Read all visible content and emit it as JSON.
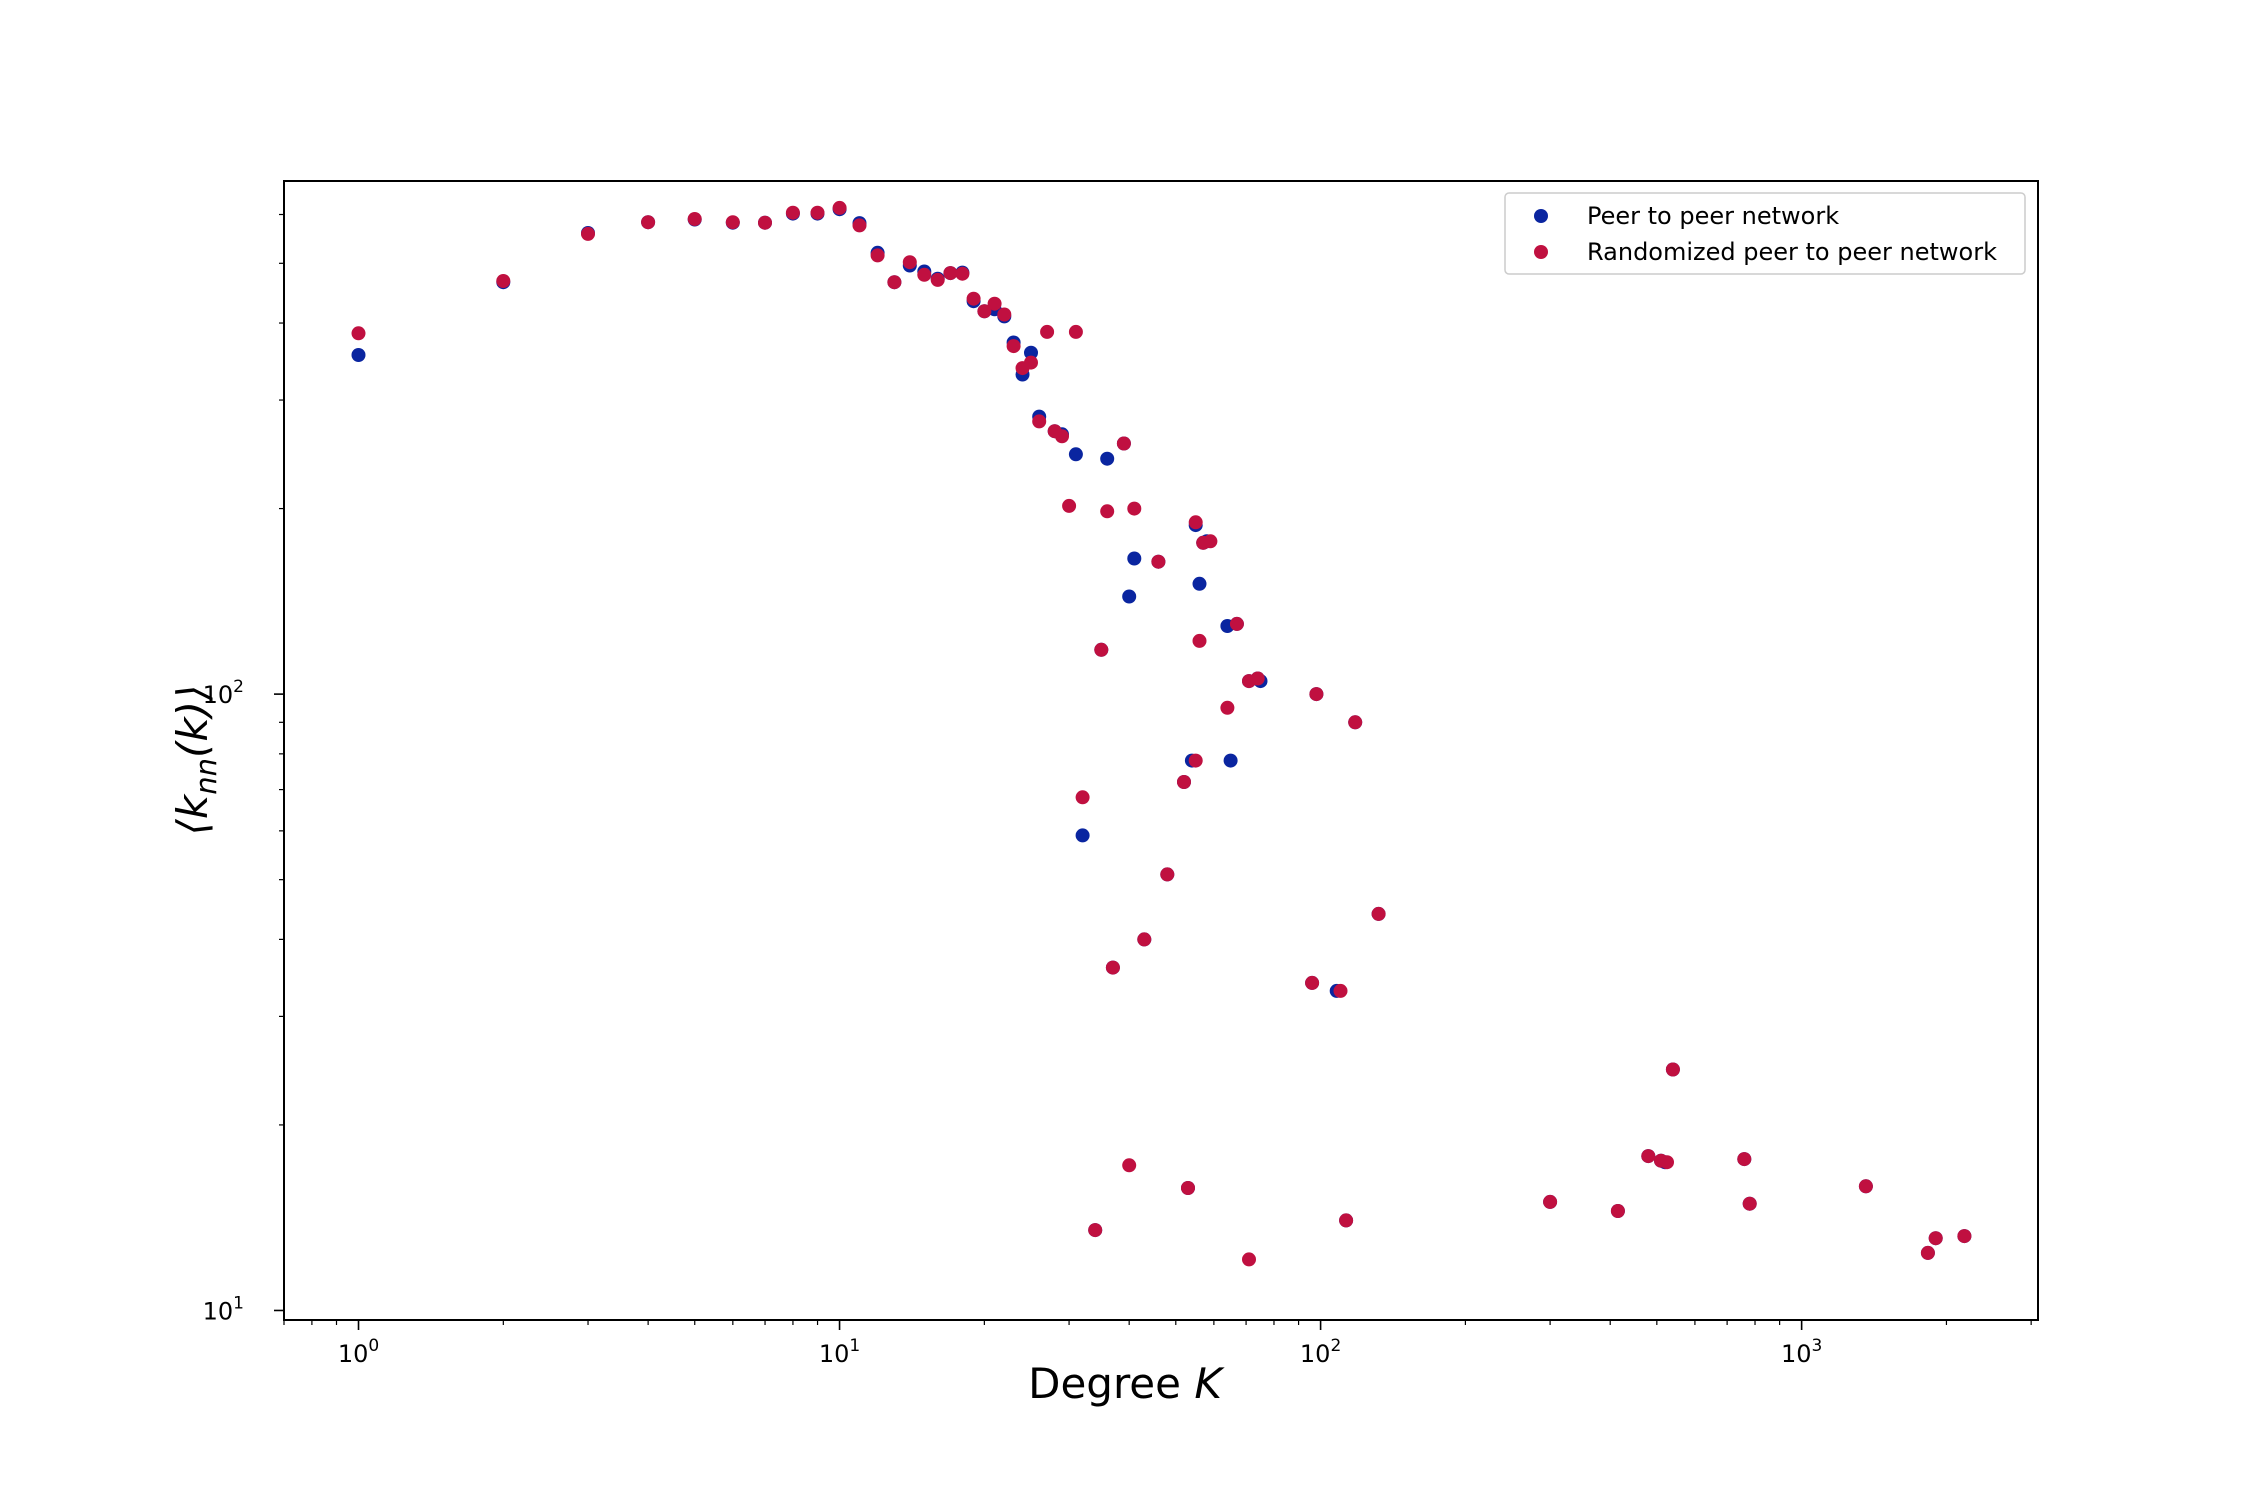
{
  "chart_data": {
    "type": "scatter",
    "title": "",
    "xlabel": "Degree",
    "xlabel_var": "K",
    "ylabel": "⟨k",
    "ylabel_sub": "nn",
    "ylabel_tail": "(k)⟩",
    "xscale": "log",
    "yscale": "log",
    "xlim": [
      0.7,
      3100
    ],
    "ylim": [
      9.65,
      680
    ],
    "x_ticks": [
      {
        "value": 1,
        "base": "10",
        "exp": "0"
      },
      {
        "value": 10,
        "base": "10",
        "exp": "1"
      },
      {
        "value": 100,
        "base": "10",
        "exp": "2"
      },
      {
        "value": 1000,
        "base": "10",
        "exp": "3"
      }
    ],
    "y_ticks": [
      {
        "value": 10,
        "base": "10",
        "exp": "1"
      },
      {
        "value": 100,
        "base": "10",
        "exp": "2"
      }
    ],
    "grid": false,
    "legend_position": "top-right",
    "series": [
      {
        "name": "Peer to peer network",
        "color": "#0a25a0",
        "points": [
          [
            1,
            355
          ],
          [
            2,
            466
          ],
          [
            3,
            560
          ],
          [
            4,
            583
          ],
          [
            5,
            589
          ],
          [
            6,
            582
          ],
          [
            7,
            582
          ],
          [
            8,
            602
          ],
          [
            9,
            602
          ],
          [
            10,
            612
          ],
          [
            11,
            581
          ],
          [
            12,
            520
          ],
          [
            13,
            466
          ],
          [
            14,
            496
          ],
          [
            15,
            485
          ],
          [
            16,
            472
          ],
          [
            17,
            482
          ],
          [
            18,
            483
          ],
          [
            19,
            434
          ],
          [
            20,
            418
          ],
          [
            21,
            421
          ],
          [
            22,
            410
          ],
          [
            23,
            372
          ],
          [
            24,
            330
          ],
          [
            25,
            358
          ],
          [
            26,
            282
          ],
          [
            28,
            267
          ],
          [
            29,
            264
          ],
          [
            31,
            245
          ],
          [
            32,
            59
          ],
          [
            34,
            13.5
          ],
          [
            35,
            118
          ],
          [
            36,
            241
          ],
          [
            37,
            36
          ],
          [
            39,
            255
          ],
          [
            40,
            144
          ],
          [
            41,
            166
          ],
          [
            43,
            40
          ],
          [
            46,
            164
          ],
          [
            48,
            51
          ],
          [
            52,
            72
          ],
          [
            53,
            15.8
          ],
          [
            54,
            78
          ],
          [
            55,
            188
          ],
          [
            56,
            151
          ],
          [
            57,
            176
          ],
          [
            58,
            177
          ],
          [
            64,
            129
          ],
          [
            65,
            78
          ],
          [
            67,
            130
          ],
          [
            71,
            105
          ],
          [
            74,
            106
          ],
          [
            75,
            105
          ],
          [
            96,
            34
          ],
          [
            98,
            100
          ],
          [
            108,
            33
          ],
          [
            113,
            14
          ],
          [
            118,
            90
          ],
          [
            132,
            44
          ],
          [
            300,
            15
          ],
          [
            415,
            14.5
          ],
          [
            480,
            17.8
          ],
          [
            510,
            17.5
          ],
          [
            520,
            17.4
          ],
          [
            540,
            24.6
          ],
          [
            760,
            17.6
          ],
          [
            780,
            14.9
          ],
          [
            1360,
            15.9
          ],
          [
            1830,
            12.4
          ],
          [
            1900,
            13.1
          ],
          [
            2180,
            13.2
          ]
        ]
      },
      {
        "name": "Randomized peer to peer network",
        "color": "#c01040",
        "points": [
          [
            1,
            385
          ],
          [
            2,
            468
          ],
          [
            3,
            558
          ],
          [
            4,
            583
          ],
          [
            5,
            590
          ],
          [
            6,
            583
          ],
          [
            7,
            582
          ],
          [
            8,
            604
          ],
          [
            9,
            604
          ],
          [
            10,
            615
          ],
          [
            11,
            576
          ],
          [
            12,
            515
          ],
          [
            13,
            466
          ],
          [
            14,
            502
          ],
          [
            15,
            479
          ],
          [
            16,
            470
          ],
          [
            17,
            482
          ],
          [
            18,
            481
          ],
          [
            19,
            438
          ],
          [
            20,
            418
          ],
          [
            21,
            430
          ],
          [
            22,
            413
          ],
          [
            23,
            367
          ],
          [
            24,
            338
          ],
          [
            25,
            345
          ],
          [
            26,
            277
          ],
          [
            27,
            387
          ],
          [
            28,
            267
          ],
          [
            29,
            262
          ],
          [
            30,
            202
          ],
          [
            31,
            387
          ],
          [
            32,
            68
          ],
          [
            34,
            13.5
          ],
          [
            35,
            118
          ],
          [
            36,
            198
          ],
          [
            37,
            36
          ],
          [
            39,
            255
          ],
          [
            40,
            17.2
          ],
          [
            41,
            200
          ],
          [
            43,
            40
          ],
          [
            46,
            164
          ],
          [
            48,
            51
          ],
          [
            52,
            72
          ],
          [
            53,
            15.8
          ],
          [
            55,
            78
          ],
          [
            55,
            190
          ],
          [
            56,
            122
          ],
          [
            57,
            176
          ],
          [
            59,
            177
          ],
          [
            64,
            95
          ],
          [
            67,
            130
          ],
          [
            71,
            12.1
          ],
          [
            71,
            105
          ],
          [
            74,
            106
          ],
          [
            96,
            34
          ],
          [
            98,
            100
          ],
          [
            110,
            33
          ],
          [
            113,
            14
          ],
          [
            118,
            90
          ],
          [
            132,
            44
          ],
          [
            300,
            15
          ],
          [
            415,
            14.5
          ],
          [
            480,
            17.8
          ],
          [
            510,
            17.5
          ],
          [
            525,
            17.4
          ],
          [
            540,
            24.6
          ],
          [
            760,
            17.6
          ],
          [
            780,
            14.9
          ],
          [
            1360,
            15.9
          ],
          [
            1830,
            12.4
          ],
          [
            1900,
            13.1
          ],
          [
            2180,
            13.2
          ]
        ]
      }
    ]
  }
}
